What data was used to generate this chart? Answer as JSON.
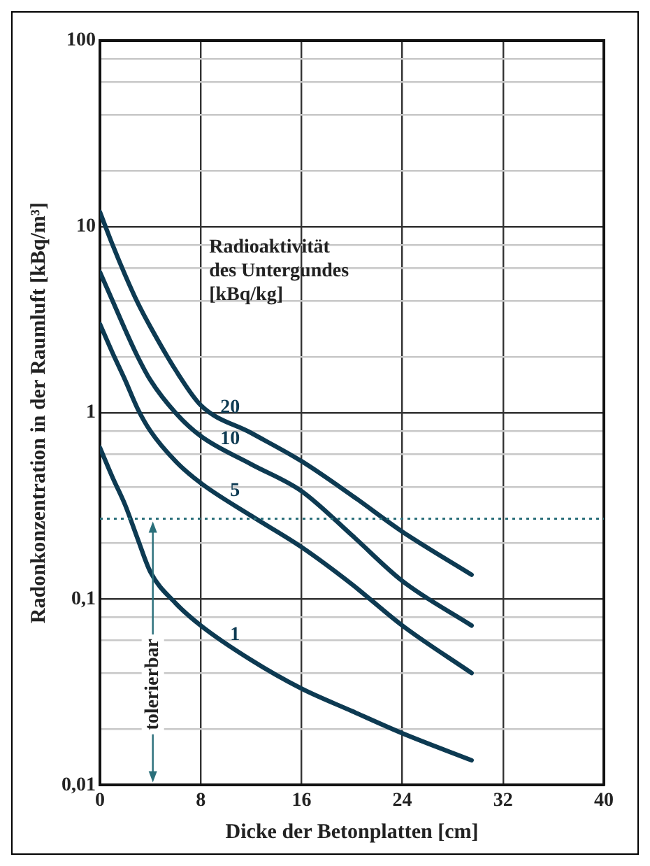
{
  "chart_data": {
    "type": "line",
    "xlabel": "Dicke der Betonplatten [cm]",
    "ylabel": "Radonkonzentration in der Raumluft [kBq/m³]",
    "legend_title": "Radioaktivität des Untergundes [kBq/kg]",
    "x": [
      0,
      1,
      2,
      3,
      4,
      6,
      8,
      12,
      16,
      20,
      24,
      29.5
    ],
    "series": [
      {
        "name": "20",
        "color": "#0d3a52",
        "values": [
          12,
          8,
          5.5,
          3.9,
          2.9,
          1.7,
          1.1,
          0.78,
          0.55,
          0.36,
          0.23,
          0.135
        ]
      },
      {
        "name": "10",
        "color": "#0d3a52",
        "values": [
          5.7,
          4,
          2.8,
          2,
          1.5,
          1,
          0.75,
          0.53,
          0.38,
          0.22,
          0.125,
          0.072
        ]
      },
      {
        "name": "5",
        "color": "#0d3a52",
        "values": [
          3,
          2.1,
          1.5,
          1.05,
          0.8,
          0.55,
          0.42,
          0.28,
          0.19,
          0.12,
          0.072,
          0.04
        ]
      },
      {
        "name": "1",
        "color": "#0d3a52",
        "values": [
          0.65,
          0.45,
          0.32,
          0.21,
          0.14,
          0.095,
          0.072,
          0.047,
          0.033,
          0.025,
          0.019,
          0.0136
        ]
      }
    ],
    "xlim": [
      0,
      40
    ],
    "xticks": [
      0,
      8,
      16,
      24,
      32,
      40
    ],
    "ylim": [
      0.01,
      100
    ],
    "yticks": [
      {
        "value": 0.01,
        "label": "0,01"
      },
      {
        "value": 0.02,
        "label": null
      },
      {
        "value": 0.04,
        "label": null
      },
      {
        "value": 0.06,
        "label": null
      },
      {
        "value": 0.08,
        "label": null
      },
      {
        "value": 0.1,
        "label": "0,1"
      },
      {
        "value": 0.2,
        "label": null
      },
      {
        "value": 0.4,
        "label": null
      },
      {
        "value": 0.6,
        "label": null
      },
      {
        "value": 0.8,
        "label": null
      },
      1,
      {
        "value": 2,
        "label": null
      },
      {
        "value": 4,
        "label": null
      },
      {
        "value": 6,
        "label": null
      },
      {
        "value": 8,
        "label": null
      },
      10,
      {
        "value": 20,
        "label": null
      },
      {
        "value": 40,
        "label": null
      },
      {
        "value": 60,
        "label": null
      },
      {
        "value": 80,
        "label": null
      },
      100
    ],
    "log": "y",
    "grid": true,
    "legend": false,
    "marker": "none",
    "line_style": "solid",
    "ref_lines": [
      {
        "axis": "y",
        "value": 0.27,
        "label": null,
        "color": "#2a6f7a",
        "line_style": "dotted"
      }
    ],
    "annotations": [
      "tolerierbar"
    ]
  }
}
